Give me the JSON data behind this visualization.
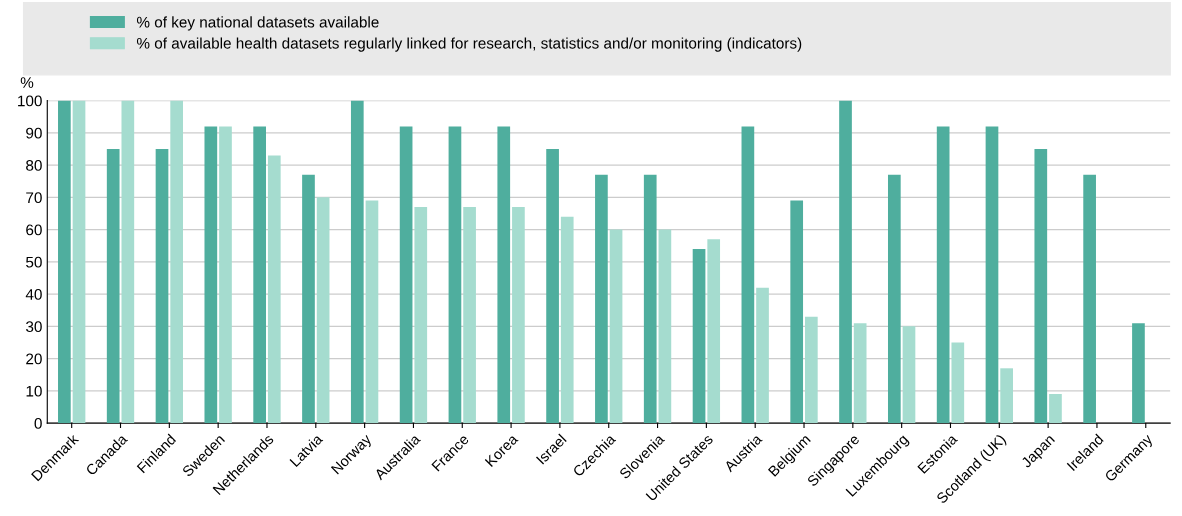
{
  "chart_data": {
    "type": "bar",
    "ylabel": "%",
    "categories": [
      "Denmark",
      "Canada",
      "Finland",
      "Sweden",
      "Netherlands",
      "Latvia",
      "Norway",
      "Australia",
      "France",
      "Korea",
      "Israel",
      "Czechia",
      "Slovenia",
      "United States",
      "Austria",
      "Belgium",
      "Singapore",
      "Luxembourg",
      "Estonia",
      "Scotland (UK)",
      "Japan",
      "Ireland",
      "Germany"
    ],
    "series": [
      {
        "name": "% of key national datasets available",
        "color": "#4fae9e",
        "values": [
          100,
          85,
          85,
          92,
          92,
          77,
          100,
          92,
          92,
          92,
          85,
          77,
          77,
          54,
          92,
          69,
          100,
          77,
          92,
          92,
          85,
          77,
          31
        ]
      },
      {
        "name": "% of available health datasets regularly linked for research, statistics and/or monitoring (indicators)",
        "color": "#a5dccf",
        "values": [
          100,
          100,
          100,
          92,
          83,
          70,
          69,
          67,
          67,
          67,
          64,
          60,
          60,
          57,
          42,
          33,
          31,
          30,
          25,
          17,
          9,
          null,
          null
        ]
      }
    ],
    "ylim": [
      0,
      100
    ],
    "yticks": [
      0,
      10,
      20,
      30,
      40,
      50,
      60,
      70,
      80,
      90,
      100
    ],
    "grid": "y",
    "legend": "top"
  }
}
